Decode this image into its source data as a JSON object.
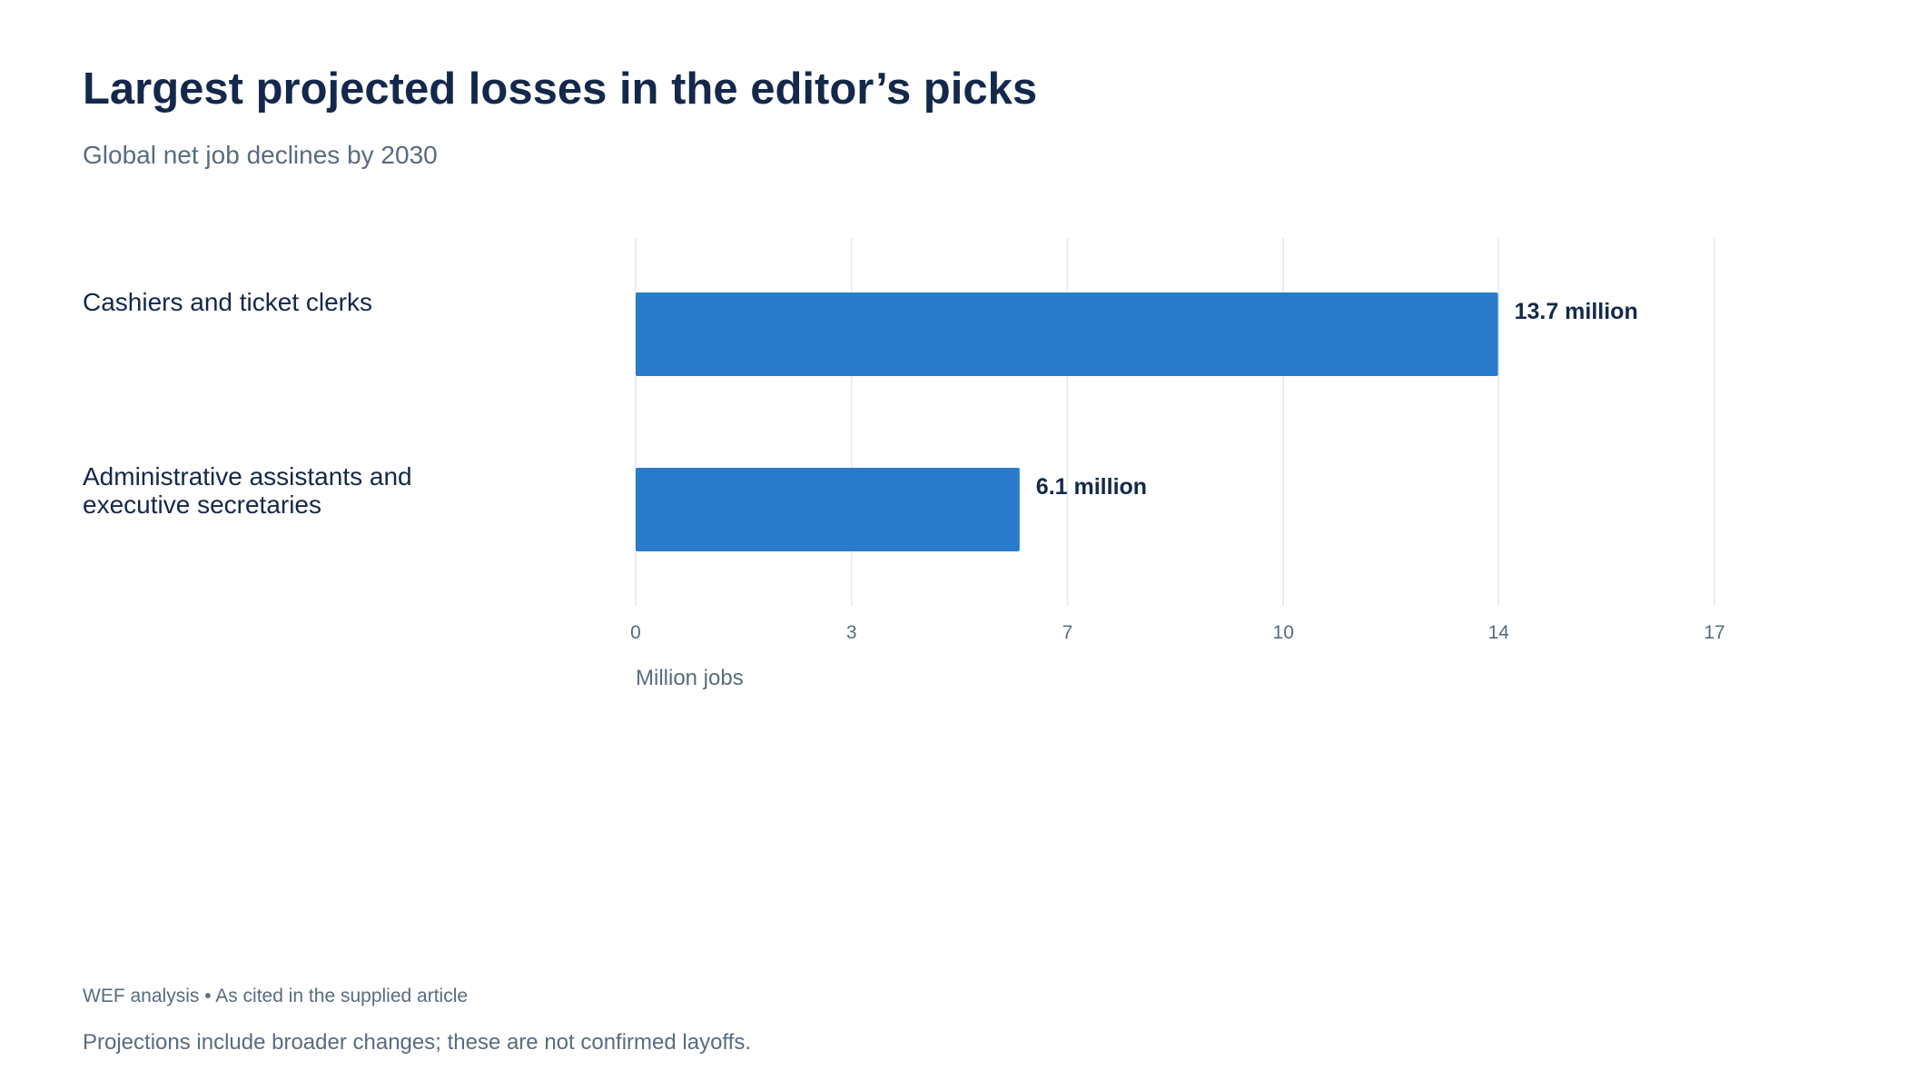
{
  "header": {
    "title": "Largest projected losses in the editor’s picks",
    "subtitle": "Global net job declines by 2030"
  },
  "footer": {
    "source": "WEF analysis • As cited in the supplied article",
    "note": "Projections include broader changes; these are not confirmed layoffs."
  },
  "colors": {
    "bar": "#2a7bcc",
    "grid": "#e4e8ee",
    "category_text": "#14284b",
    "value_text": "#14284b",
    "tick_text": "#5a6b80",
    "axis_label_text": "#5a6b80"
  },
  "chart_data": {
    "type": "bar",
    "orientation": "horizontal",
    "title": "Largest projected losses in the editor’s picks",
    "subtitle": "Global net job declines by 2030",
    "categories": [
      [
        "Cashiers and ticket clerks"
      ],
      [
        "Administrative assistants and",
        "executive secretaries"
      ]
    ],
    "values": [
      13.7,
      6.1
    ],
    "value_labels": [
      "13.7 million",
      "6.1 million"
    ],
    "xlabel": "Million jobs",
    "ylabel": "",
    "xlim": [
      0,
      17.14
    ],
    "ticks": [
      {
        "value": 0,
        "label": "0"
      },
      {
        "value": 3.43,
        "label": "3"
      },
      {
        "value": 6.86,
        "label": "7"
      },
      {
        "value": 10.29,
        "label": "10"
      },
      {
        "value": 13.71,
        "label": "14"
      },
      {
        "value": 17.14,
        "label": "17"
      }
    ],
    "grid": true,
    "legend": "none"
  }
}
